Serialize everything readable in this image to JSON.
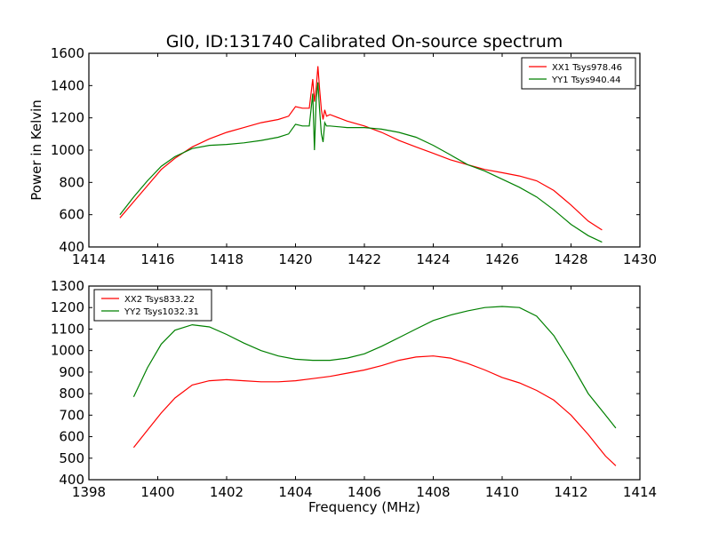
{
  "figure_title": "Gl0, ID:131740 Calibrated On-source spectrum",
  "colors": {
    "red": "#ff0000",
    "green": "#008000"
  },
  "chart_data": [
    {
      "type": "line",
      "title": "Gl0, ID:131740 Calibrated On-source spectrum",
      "xlabel": "",
      "ylabel": "Power in Kelvin",
      "xlim": [
        1414,
        1430
      ],
      "ylim": [
        400,
        1600
      ],
      "xticks": [
        1414,
        1416,
        1418,
        1420,
        1422,
        1424,
        1426,
        1428,
        1430
      ],
      "yticks": [
        400,
        600,
        800,
        1000,
        1200,
        1400,
        1600
      ],
      "legend_position": "top-right",
      "grid": false,
      "series": [
        {
          "name": "XX1 Tsys978.46",
          "color": "#ff0000",
          "x": [
            1414.9,
            1415.3,
            1415.7,
            1416.1,
            1416.5,
            1417.0,
            1417.5,
            1418.0,
            1418.5,
            1419.0,
            1419.5,
            1419.8,
            1420.0,
            1420.2,
            1420.4,
            1420.5,
            1420.55,
            1420.6,
            1420.65,
            1420.7,
            1420.75,
            1420.8,
            1420.85,
            1420.9,
            1421.0,
            1421.5,
            1422.0,
            1422.5,
            1423.0,
            1423.5,
            1424.0,
            1424.5,
            1425.0,
            1425.5,
            1426.0,
            1426.5,
            1427.0,
            1427.5,
            1428.0,
            1428.5,
            1428.9
          ],
          "y": [
            580,
            680,
            780,
            880,
            950,
            1020,
            1070,
            1110,
            1140,
            1170,
            1190,
            1210,
            1270,
            1260,
            1260,
            1440,
            1300,
            1380,
            1520,
            1380,
            1250,
            1190,
            1250,
            1210,
            1220,
            1180,
            1150,
            1110,
            1060,
            1020,
            980,
            940,
            910,
            880,
            860,
            840,
            810,
            750,
            660,
            560,
            505
          ]
        },
        {
          "name": "YY1 Tsys940.44",
          "color": "#008000",
          "x": [
            1414.9,
            1415.3,
            1415.7,
            1416.1,
            1416.5,
            1417.0,
            1417.5,
            1418.0,
            1418.5,
            1419.0,
            1419.5,
            1419.8,
            1420.0,
            1420.2,
            1420.4,
            1420.5,
            1420.55,
            1420.6,
            1420.65,
            1420.7,
            1420.75,
            1420.8,
            1420.85,
            1420.9,
            1421.0,
            1421.5,
            1422.0,
            1422.5,
            1423.0,
            1423.5,
            1424.0,
            1424.5,
            1425.0,
            1425.5,
            1426.0,
            1426.5,
            1427.0,
            1427.5,
            1428.0,
            1428.5,
            1428.9
          ],
          "y": [
            600,
            710,
            810,
            900,
            960,
            1010,
            1030,
            1035,
            1045,
            1060,
            1080,
            1100,
            1160,
            1150,
            1150,
            1350,
            1000,
            1300,
            1420,
            1250,
            1100,
            1050,
            1170,
            1150,
            1150,
            1140,
            1140,
            1130,
            1110,
            1080,
            1030,
            970,
            910,
            870,
            820,
            770,
            710,
            630,
            540,
            470,
            430
          ]
        }
      ]
    },
    {
      "type": "line",
      "title": "",
      "xlabel": "Frequency (MHz)",
      "ylabel": "",
      "xlim": [
        1398,
        1414
      ],
      "ylim": [
        400,
        1300
      ],
      "xticks": [
        1398,
        1400,
        1402,
        1404,
        1406,
        1408,
        1410,
        1412,
        1414
      ],
      "yticks": [
        400,
        500,
        600,
        700,
        800,
        900,
        1000,
        1100,
        1200,
        1300
      ],
      "legend_position": "top-left",
      "grid": false,
      "series": [
        {
          "name": "XX2 Tsys833.22",
          "color": "#ff0000",
          "x": [
            1399.3,
            1399.7,
            1400.1,
            1400.5,
            1401.0,
            1401.5,
            1402.0,
            1402.5,
            1403.0,
            1403.5,
            1404.0,
            1404.5,
            1405.0,
            1405.5,
            1406.0,
            1406.5,
            1407.0,
            1407.5,
            1408.0,
            1408.5,
            1409.0,
            1409.5,
            1410.0,
            1410.5,
            1411.0,
            1411.5,
            1412.0,
            1412.5,
            1413.0,
            1413.3
          ],
          "y": [
            550,
            630,
            710,
            780,
            840,
            860,
            865,
            860,
            855,
            855,
            860,
            870,
            880,
            895,
            910,
            930,
            955,
            970,
            975,
            965,
            940,
            910,
            875,
            850,
            815,
            770,
            700,
            610,
            510,
            465
          ]
        },
        {
          "name": "YY2 Tsys1032.31",
          "color": "#008000",
          "x": [
            1399.3,
            1399.7,
            1400.1,
            1400.5,
            1401.0,
            1401.5,
            1402.0,
            1402.5,
            1403.0,
            1403.5,
            1404.0,
            1404.5,
            1405.0,
            1405.5,
            1406.0,
            1406.5,
            1407.0,
            1407.5,
            1408.0,
            1408.5,
            1409.0,
            1409.5,
            1410.0,
            1410.5,
            1411.0,
            1411.5,
            1412.0,
            1412.5,
            1413.0,
            1413.3
          ],
          "y": [
            785,
            920,
            1030,
            1095,
            1120,
            1110,
            1075,
            1035,
            1000,
            975,
            960,
            955,
            955,
            965,
            985,
            1020,
            1060,
            1100,
            1140,
            1165,
            1185,
            1200,
            1205,
            1200,
            1160,
            1070,
            940,
            800,
            700,
            640
          ]
        }
      ]
    }
  ]
}
